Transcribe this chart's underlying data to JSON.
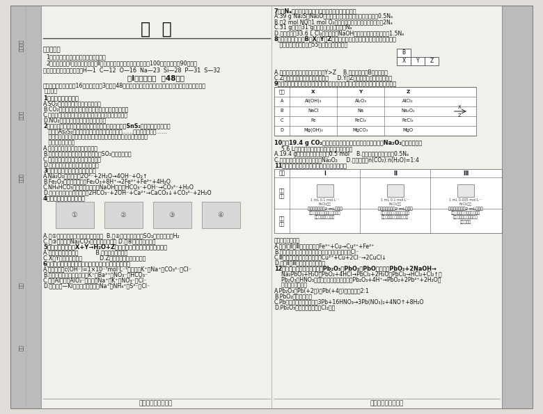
{
  "title": "化  学",
  "bg_color": "#e0ddd8",
  "paper_color": "#f2f0eb",
  "text_color": "#111111",
  "line_color": "#444444",
  "footer_left": "「化学（第１页）」",
  "footer_right": "「化学（第２页）」",
  "left_strip_color": "#bbbbbb",
  "right_strip_color": "#bbbbbb",
  "margin_label_color": "#444444",
  "margin_labels": [
    "准考证号",
    "考场号",
    "座位号",
    "学校",
    "班级"
  ],
  "margin_positions": [
    530,
    430,
    340,
    185,
    95
  ]
}
